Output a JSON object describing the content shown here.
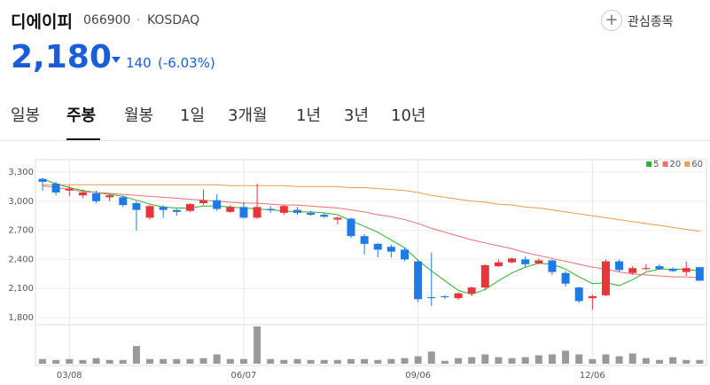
{
  "header": {
    "title": "디에이피",
    "code": "066900",
    "separator": "·",
    "market": "KOSDAQ",
    "price": "2,180",
    "change": "140",
    "change_pct": "(-6.03%)",
    "watch_icon": "+",
    "watch": "관심종목",
    "tabs": [
      "일봉",
      "주봉",
      "월봉",
      "1일",
      "3개월",
      "1년",
      "3년",
      "10년"
    ],
    "active_tab": 1
  },
  "chart_data": {
    "type": "candlestick",
    "categories": [
      null,
      null,
      "03/08",
      null,
      null,
      null,
      null,
      null,
      null,
      null,
      null,
      null,
      null,
      null,
      null,
      "06/07",
      null,
      null,
      null,
      null,
      null,
      null,
      null,
      null,
      null,
      null,
      null,
      null,
      "09/06",
      null,
      null,
      null,
      null,
      null,
      null,
      null,
      null,
      null,
      null,
      null,
      null,
      "12/06",
      null,
      null,
      null,
      null,
      null,
      null,
      null,
      null
    ],
    "open": [
      3230,
      3180,
      3110,
      3060,
      3080,
      3040,
      3040,
      2980,
      2830,
      2940,
      2910,
      2900,
      2980,
      3010,
      2890,
      2940,
      2830,
      2920,
      2880,
      2910,
      2880,
      2860,
      2810,
      2820,
      2640,
      2560,
      2530,
      2500,
      2380,
      2010,
      2020,
      2000,
      2050,
      2110,
      2330,
      2370,
      2400,
      2360,
      2390,
      2260,
      2110,
      2000,
      2030,
      2380,
      2260,
      2300,
      2330,
      2300,
      2270,
      2320
    ],
    "high": [
      3240,
      3200,
      3160,
      3120,
      3110,
      3070,
      3060,
      3000,
      2960,
      2960,
      2920,
      2980,
      3120,
      3070,
      2960,
      2990,
      3180,
      2950,
      2960,
      2940,
      2900,
      2880,
      2840,
      2830,
      2660,
      2570,
      2550,
      2520,
      2400,
      2470,
      2030,
      2060,
      2120,
      2350,
      2400,
      2420,
      2430,
      2410,
      2400,
      2280,
      2120,
      2040,
      2400,
      2400,
      2330,
      2350,
      2350,
      2320,
      2380,
      2320
    ],
    "low": [
      3110,
      3060,
      3050,
      3030,
      2980,
      3000,
      2940,
      2700,
      2810,
      2830,
      2850,
      2890,
      2960,
      2900,
      2880,
      2820,
      2820,
      2880,
      2860,
      2860,
      2850,
      2830,
      2760,
      2620,
      2450,
      2420,
      2420,
      2380,
      1960,
      1920,
      1990,
      1980,
      2020,
      2090,
      2320,
      2360,
      2320,
      2350,
      2240,
      2120,
      1950,
      1880,
      2020,
      2270,
      2240,
      2290,
      2290,
      2270,
      2230,
      2180
    ],
    "close": [
      3200,
      3090,
      3130,
      3090,
      3000,
      3060,
      2960,
      2910,
      2950,
      2910,
      2890,
      2970,
      3010,
      2920,
      2940,
      2830,
      2940,
      2910,
      2950,
      2880,
      2860,
      2840,
      2830,
      2640,
      2560,
      2500,
      2480,
      2400,
      1990,
      2000,
      2010,
      2050,
      2110,
      2340,
      2370,
      2410,
      2350,
      2390,
      2270,
      2150,
      1970,
      2020,
      2380,
      2290,
      2310,
      2310,
      2300,
      2280,
      2310,
      2180
    ],
    "up_color": "#e8343b",
    "down_color": "#1e7be6",
    "series": [
      {
        "name": "5",
        "color": "#2cb12c",
        "values": [
          3230,
          3180,
          3140,
          3110,
          3090,
          3070,
          3050,
          3010,
          2970,
          2940,
          2930,
          2930,
          2950,
          2950,
          2940,
          2930,
          2920,
          2910,
          2900,
          2890,
          2890,
          2880,
          2860,
          2800,
          2740,
          2680,
          2600,
          2520,
          2390,
          2280,
          2180,
          2080,
          2040,
          2090,
          2180,
          2260,
          2320,
          2360,
          2350,
          2300,
          2220,
          2150,
          2160,
          2130,
          2190,
          2270,
          2300,
          2300,
          2300,
          2280
        ]
      },
      {
        "name": "20",
        "color": "#f26d6d",
        "values": [
          3160,
          3140,
          3120,
          3100,
          3090,
          3080,
          3070,
          3060,
          3050,
          3040,
          3030,
          3020,
          3010,
          3000,
          2990,
          2980,
          2980,
          2970,
          2960,
          2960,
          2950,
          2940,
          2930,
          2910,
          2890,
          2860,
          2840,
          2810,
          2770,
          2720,
          2680,
          2640,
          2600,
          2570,
          2540,
          2510,
          2470,
          2440,
          2410,
          2380,
          2350,
          2320,
          2300,
          2270,
          2250,
          2240,
          2230,
          2220,
          2220,
          2210
        ]
      },
      {
        "name": "60",
        "color": "#ef9a4c",
        "values": [
          3170,
          3170,
          3170,
          3170,
          3170,
          3170,
          3170,
          3170,
          3170,
          3170,
          3170,
          3170,
          3170,
          3170,
          3160,
          3160,
          3160,
          3160,
          3160,
          3150,
          3150,
          3150,
          3150,
          3140,
          3140,
          3130,
          3120,
          3110,
          3090,
          3060,
          3040,
          3020,
          3000,
          2990,
          2970,
          2960,
          2940,
          2930,
          2910,
          2890,
          2870,
          2850,
          2830,
          2810,
          2790,
          2770,
          2750,
          2730,
          2710,
          2690
        ]
      }
    ],
    "volume": [
      5,
      4,
      5,
      4,
      6,
      4,
      4,
      19,
      5,
      5,
      5,
      5,
      6,
      10,
      5,
      5,
      40,
      5,
      4,
      5,
      4,
      4,
      4,
      5,
      5,
      4,
      5,
      6,
      8,
      13,
      3,
      6,
      7,
      10,
      7,
      6,
      7,
      9,
      10,
      14,
      10,
      5,
      10,
      8,
      11,
      6,
      4,
      7,
      4,
      4
    ],
    "volume_color": "#999999",
    "ylim": [
      1800,
      3300
    ],
    "yticks": [
      {
        "value": 1800,
        "label": "1,800"
      },
      {
        "value": 2100,
        "label": "2,100"
      },
      {
        "value": 2400,
        "label": "2,400"
      },
      {
        "value": 2700,
        "label": "2,700"
      },
      {
        "value": 3000,
        "label": "3,000"
      },
      {
        "value": 3300,
        "label": "3,300"
      }
    ],
    "grid": true,
    "legend": "top-right"
  }
}
